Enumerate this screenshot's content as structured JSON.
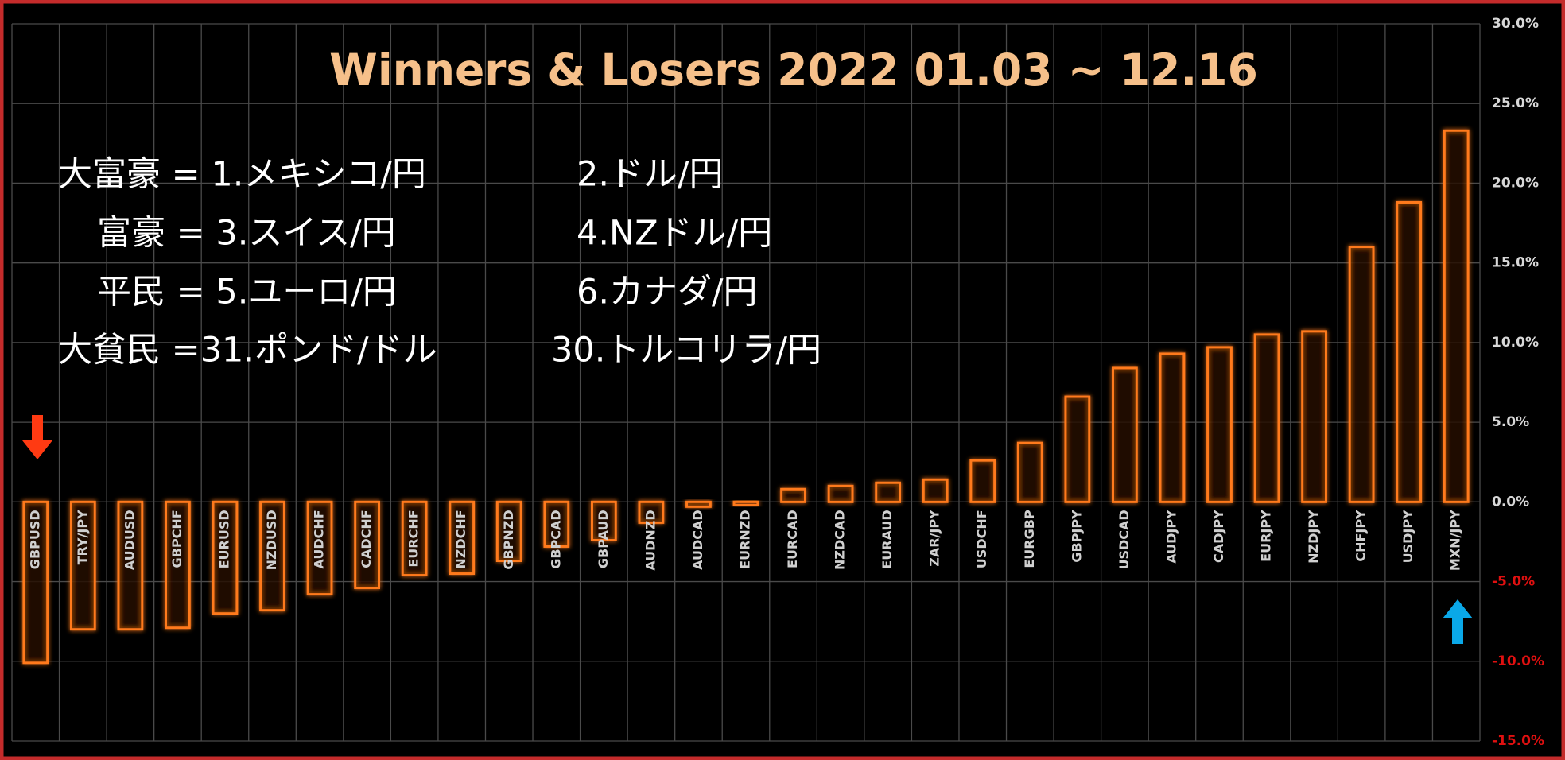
{
  "chart_data": {
    "type": "bar",
    "title": "Winners & Losers  2022 01.03 ~ 12.16",
    "annotations": [
      {
        "left": "大富豪 =  1.メキシコ/円",
        "right": "2.ドル/円"
      },
      {
        "left": "富豪 =  3.スイス/円",
        "right": "4.NZドル/円"
      },
      {
        "left": "平民 =  5.ユーロ/円",
        "right": "6.カナダ/円"
      },
      {
        "left": "大貧民 =31.ポンド/ドル",
        "right": "30.トルコリラ/円"
      }
    ],
    "categories": [
      "GBPUSD",
      "TRY/JPY",
      "AUDUSD",
      "GBPCHF",
      "EURUSD",
      "NZDUSD",
      "AUDCHF",
      "CADCHF",
      "EURCHF",
      "NZDCHF",
      "GBPNZD",
      "GBPCAD",
      "GBPAUD",
      "AUDNZD",
      "AUDCAD",
      "EURNZD",
      "EURCAD",
      "NZDCAD",
      "EURAUD",
      "ZAR/JPY",
      "USDCHF",
      "EURGBP",
      "GBPJPY",
      "USDCAD",
      "AUDJPY",
      "CADJPY",
      "EURJPY",
      "NZDJPY",
      "CHFJPY",
      "USDJPY",
      "MXN/JPY"
    ],
    "values": [
      -10.1,
      -8.0,
      -8.0,
      -7.9,
      -7.0,
      -6.8,
      -5.8,
      -5.4,
      -4.6,
      -4.5,
      -3.7,
      -2.8,
      -2.4,
      -1.3,
      -0.3,
      -0.2,
      0.8,
      1.0,
      1.2,
      1.4,
      2.6,
      3.7,
      6.6,
      8.4,
      9.3,
      9.7,
      10.5,
      10.7,
      16.0,
      18.8,
      23.3
    ],
    "color": "#ff7a1a",
    "ylim": [
      -15,
      30
    ],
    "yticks": [
      {
        "value": -15,
        "label": "-15.0%"
      },
      {
        "value": -10,
        "label": "-10.0%"
      },
      {
        "value": -5,
        "label": "-5.0%"
      },
      {
        "value": 0,
        "label": "0.0%"
      },
      {
        "value": 5,
        "label": "5.0%"
      },
      {
        "value": 10,
        "label": "10.0%"
      },
      {
        "value": 15,
        "label": "15.0%"
      },
      {
        "value": 20,
        "label": "20.0%"
      },
      {
        "value": 25,
        "label": "25.0%"
      },
      {
        "value": 30,
        "label": "30.0%"
      }
    ],
    "grid": true
  }
}
